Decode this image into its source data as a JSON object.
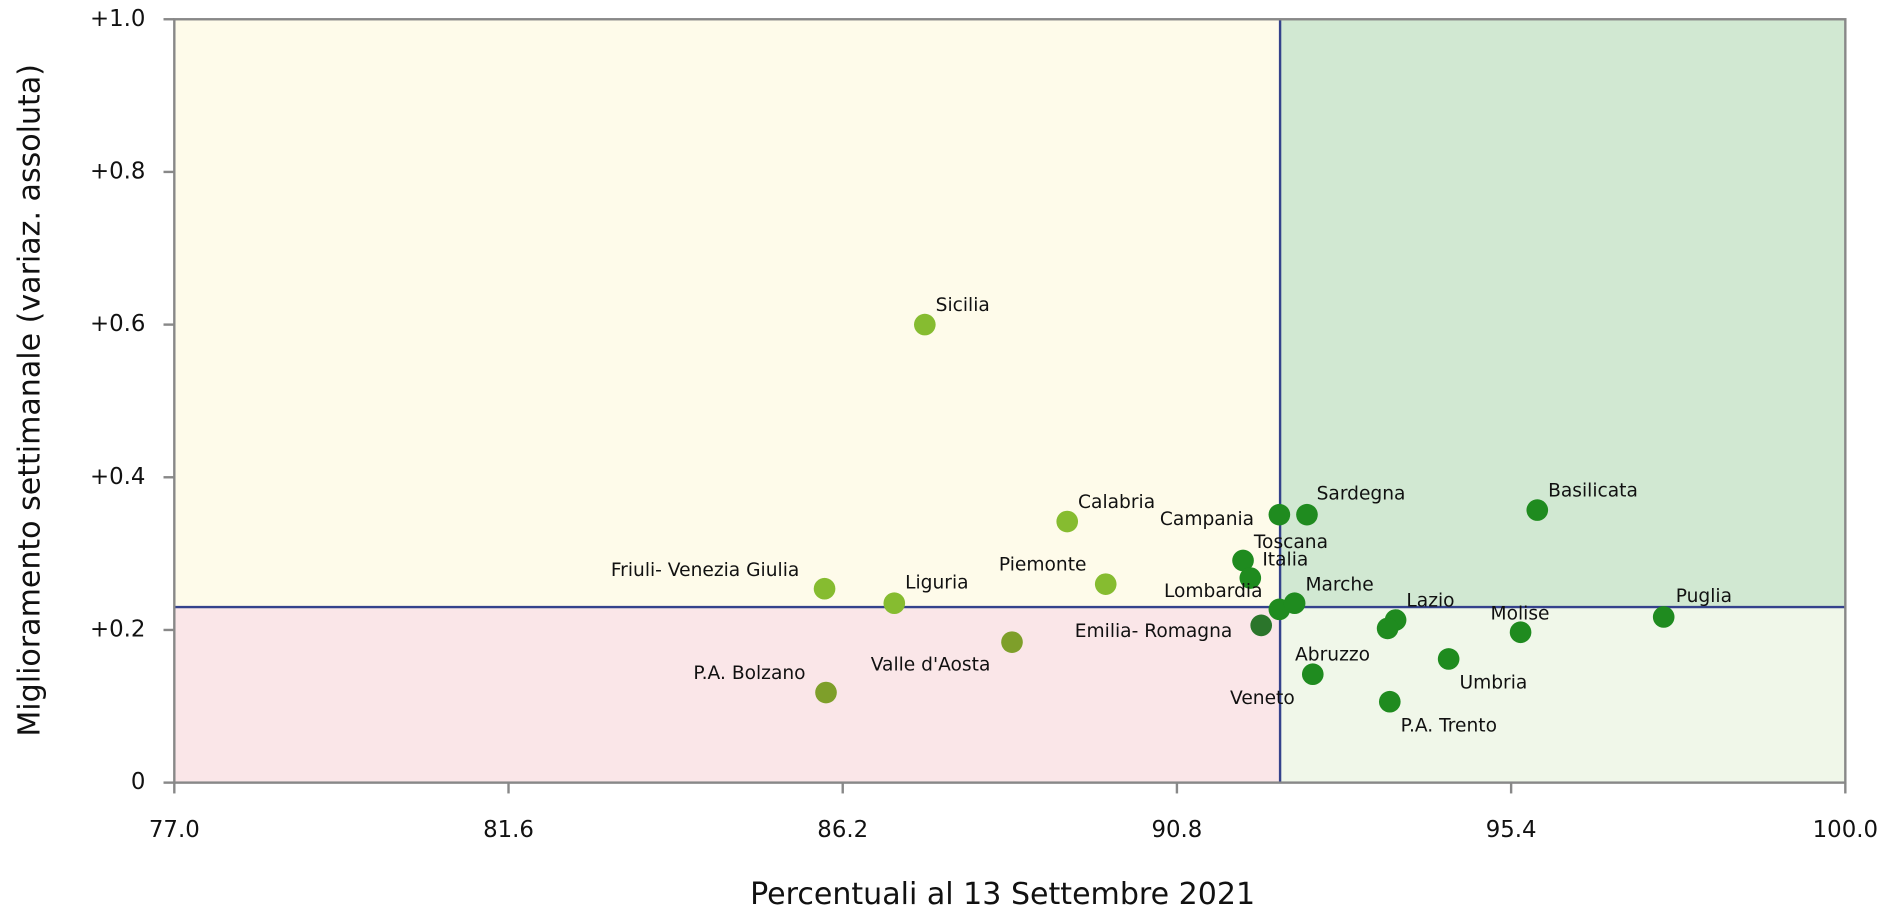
{
  "chart_data": {
    "type": "scatter",
    "xlabel": "Percentuali al 13 Settembre 2021",
    "ylabel": "Miglioramento settimanale (variaz. assoluta)",
    "xlim": [
      77,
      100
    ],
    "xticks": [
      {
        "value": 77,
        "label": "77.0"
      },
      {
        "value": 81.6,
        "label": "81.6"
      },
      {
        "value": 86.2,
        "label": "86.2"
      },
      {
        "value": 90.8,
        "label": "90.8"
      },
      {
        "value": 95.4,
        "label": "95.4"
      },
      {
        "value": 100,
        "label": "100.0"
      }
    ],
    "ylim": [
      0,
      1
    ],
    "yticks": [
      0,
      {
        "value": 0.2,
        "label": "+0.2"
      },
      {
        "value": 0.4,
        "label": "+0.4"
      },
      {
        "value": 0.6,
        "label": "+0.6"
      },
      {
        "value": 0.8,
        "label": "+0.8"
      },
      {
        "value": 1,
        "label": "+1.0"
      }
    ],
    "threshold_x": 92.22,
    "threshold_y": 0.23,
    "quadrant_colors": {
      "upper_left": "#fefbea",
      "upper_right": "#d1e8d2",
      "lower_left": "#fae6e8",
      "lower_right": "#f0f7e9"
    },
    "threshold_color": "#34428c",
    "points": [
      {
        "name": "Sicilia",
        "x": 87.33,
        "y": 0.6,
        "color": "#86bc30"
      },
      {
        "name": "Calabria",
        "x": 89.29,
        "y": 0.342,
        "color": "#86bc30"
      },
      {
        "name": "Friuli- Venezia Giulia",
        "x": 85.95,
        "y": 0.254,
        "color": "#86bc30"
      },
      {
        "name": "Liguria",
        "x": 86.91,
        "y": 0.235,
        "color": "#86bc30"
      },
      {
        "name": "Piemonte",
        "x": 89.82,
        "y": 0.26,
        "color": "#86bc30"
      },
      {
        "name": "Valle d'Aosta",
        "x": 88.53,
        "y": 0.184,
        "color": "#7e9f2a"
      },
      {
        "name": "P.A. Bolzano",
        "x": 85.97,
        "y": 0.118,
        "color": "#7e9f2a"
      },
      {
        "name": "Campania",
        "x": 92.21,
        "y": 0.351,
        "color": "#1f8b1f"
      },
      {
        "name": "Sardegna",
        "x": 92.59,
        "y": 0.351,
        "color": "#1f8b1f"
      },
      {
        "name": "Basilicata",
        "x": 95.76,
        "y": 0.357,
        "color": "#1f8b1f"
      },
      {
        "name": "Toscana",
        "x": 91.71,
        "y": 0.291,
        "color": "#1f8b1f"
      },
      {
        "name": "Italia",
        "x": 91.81,
        "y": 0.268,
        "color": "#1f8b1f"
      },
      {
        "name": "Lombardia",
        "x": 92.21,
        "y": 0.227,
        "color": "#1f8b1f"
      },
      {
        "name": "Marche",
        "x": 92.42,
        "y": 0.235,
        "color": "#1f8b1f"
      },
      {
        "name": "Emilia- Romagna",
        "x": 91.96,
        "y": 0.206,
        "color": "#2b752b"
      },
      {
        "name": "Lazio",
        "x": 93.81,
        "y": 0.213,
        "color": "#1f8b1f"
      },
      {
        "name": "Abruzzo",
        "x": 93.7,
        "y": 0.202,
        "color": "#1f8b1f"
      },
      {
        "name": "Veneto",
        "x": 92.67,
        "y": 0.142,
        "color": "#1f8b1f"
      },
      {
        "name": "Umbria",
        "x": 94.54,
        "y": 0.162,
        "color": "#1f8b1f"
      },
      {
        "name": "P.A. Trento",
        "x": 93.73,
        "y": 0.106,
        "color": "#1f8b1f"
      },
      {
        "name": "Molise",
        "x": 95.53,
        "y": 0.197,
        "color": "#1f8b1f"
      },
      {
        "name": "Puglia",
        "x": 97.5,
        "y": 0.217,
        "color": "#1f8b1f"
      }
    ]
  }
}
